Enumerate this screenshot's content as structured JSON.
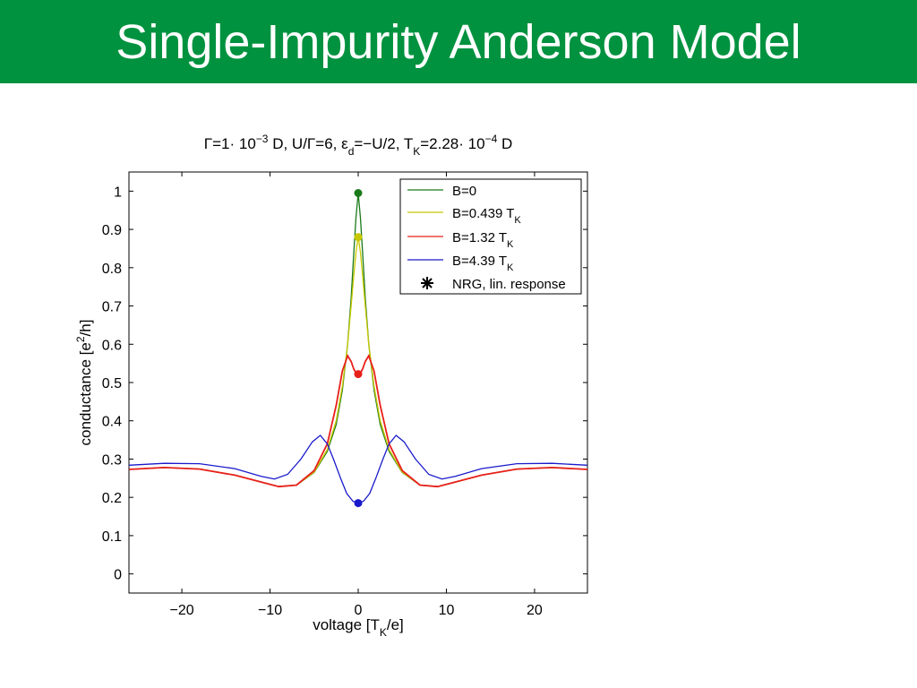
{
  "slide": {
    "title": "Single-Impurity Anderson Model",
    "header_color": "#00923f"
  },
  "chart_data": {
    "type": "line",
    "title": "Γ=1· 10^−3 D, U/Γ=6, ε_d=−U/2, T_K=2.28· 10^−4 D",
    "title_parts": {
      "p1": "Γ=1· 10",
      "p1_exp": "−3",
      "p2": " D, U/Γ=6, ε",
      "p2_sub": "d",
      "p3": "=−U/2, T",
      "p3_sub": "K",
      "p4": "=2.28· 10",
      "p4_exp": "−4",
      "p5": " D"
    },
    "xlabel": "voltage [T_K/e]",
    "xlabel_parts": {
      "a": "voltage [T",
      "sub": "K",
      "b": "/e]"
    },
    "ylabel": "conductance [e^2/h]",
    "ylabel_parts": {
      "a": "conductance [e",
      "sup": "2",
      "b": "/h]"
    },
    "xlim": [
      -26,
      26
    ],
    "ylim": [
      -0.05,
      1.05
    ],
    "xticks": [
      -20,
      -10,
      0,
      10,
      20
    ],
    "xtick_labels": [
      "−20",
      "−10",
      "0",
      "10",
      "20"
    ],
    "yticks": [
      0,
      0.1,
      0.2,
      0.3,
      0.4,
      0.5,
      0.6,
      0.7,
      0.8,
      0.9,
      1
    ],
    "ytick_labels": [
      "0",
      "0.1",
      "0.2",
      "0.3",
      "0.4",
      "0.5",
      "0.6",
      "0.7",
      "0.8",
      "0.9",
      "1"
    ],
    "grid": false,
    "legend_position": "top-right",
    "series": [
      {
        "name": "B=0",
        "name_main": "B=0",
        "name_sub": "",
        "color": "#1a7a1a",
        "x": [
          -26,
          -22,
          -18,
          -14,
          -11,
          -9,
          -7,
          -5,
          -3.5,
          -2.5,
          -1.8,
          -1.2,
          -0.8,
          -0.5,
          -0.25,
          0,
          0.25,
          0.5,
          0.8,
          1.2,
          1.8,
          2.5,
          3.5,
          5,
          7,
          9,
          11,
          14,
          18,
          22,
          26
        ],
        "y": [
          0.273,
          0.278,
          0.274,
          0.258,
          0.24,
          0.228,
          0.232,
          0.265,
          0.32,
          0.39,
          0.48,
          0.6,
          0.72,
          0.84,
          0.93,
          0.995,
          0.93,
          0.84,
          0.72,
          0.6,
          0.48,
          0.39,
          0.32,
          0.265,
          0.232,
          0.228,
          0.24,
          0.258,
          0.274,
          0.278,
          0.273
        ],
        "marker_y": 0.995
      },
      {
        "name": "B=0.439 T_K",
        "name_main": "B=0.439 T",
        "name_sub": "K",
        "color": "#c8c800",
        "x": [
          -26,
          -22,
          -18,
          -14,
          -11,
          -9,
          -7,
          -5,
          -3.5,
          -2.5,
          -1.8,
          -1.2,
          -0.8,
          -0.5,
          -0.25,
          0,
          0.25,
          0.5,
          0.8,
          1.2,
          1.8,
          2.5,
          3.5,
          5,
          7,
          9,
          11,
          14,
          18,
          22,
          26
        ],
        "y": [
          0.273,
          0.278,
          0.274,
          0.258,
          0.24,
          0.228,
          0.232,
          0.266,
          0.325,
          0.4,
          0.49,
          0.6,
          0.7,
          0.78,
          0.84,
          0.88,
          0.84,
          0.78,
          0.7,
          0.6,
          0.49,
          0.4,
          0.325,
          0.266,
          0.232,
          0.228,
          0.24,
          0.258,
          0.274,
          0.278,
          0.273
        ],
        "marker_y": 0.88
      },
      {
        "name": "B=1.32 T_K",
        "name_main": "B=1.32 T",
        "name_sub": "K",
        "color": "#e8201a",
        "x": [
          -26,
          -22,
          -18,
          -14,
          -11,
          -9,
          -7,
          -5,
          -3.5,
          -2.5,
          -1.8,
          -1.2,
          -0.8,
          -0.5,
          -0.25,
          0,
          0.25,
          0.5,
          0.8,
          1.2,
          1.8,
          2.5,
          3.5,
          5,
          7,
          9,
          11,
          14,
          18,
          22,
          26
        ],
        "y": [
          0.273,
          0.278,
          0.274,
          0.258,
          0.24,
          0.228,
          0.232,
          0.27,
          0.34,
          0.44,
          0.53,
          0.57,
          0.555,
          0.535,
          0.525,
          0.52,
          0.525,
          0.535,
          0.555,
          0.57,
          0.53,
          0.44,
          0.34,
          0.27,
          0.232,
          0.228,
          0.24,
          0.258,
          0.274,
          0.278,
          0.273
        ],
        "marker_y": 0.522
      },
      {
        "name": "B=4.39 T_K",
        "name_main": "B=4.39 T",
        "name_sub": "K",
        "color": "#1a1acc",
        "x": [
          -26,
          -22,
          -18,
          -14,
          -11,
          -9.5,
          -8,
          -6.5,
          -5.2,
          -4.3,
          -3.5,
          -2.8,
          -2,
          -1.3,
          -0.6,
          0,
          0.6,
          1.3,
          2,
          2.8,
          3.5,
          4.3,
          5.2,
          6.5,
          8,
          9.5,
          11,
          14,
          18,
          22,
          26
        ],
        "y": [
          0.284,
          0.289,
          0.288,
          0.275,
          0.255,
          0.248,
          0.26,
          0.3,
          0.345,
          0.362,
          0.34,
          0.3,
          0.25,
          0.21,
          0.19,
          0.185,
          0.19,
          0.21,
          0.25,
          0.3,
          0.34,
          0.362,
          0.345,
          0.3,
          0.26,
          0.248,
          0.255,
          0.275,
          0.288,
          0.289,
          0.284
        ],
        "marker_y": 0.185
      }
    ],
    "marker_legend_label": "NRG, lin. response"
  }
}
